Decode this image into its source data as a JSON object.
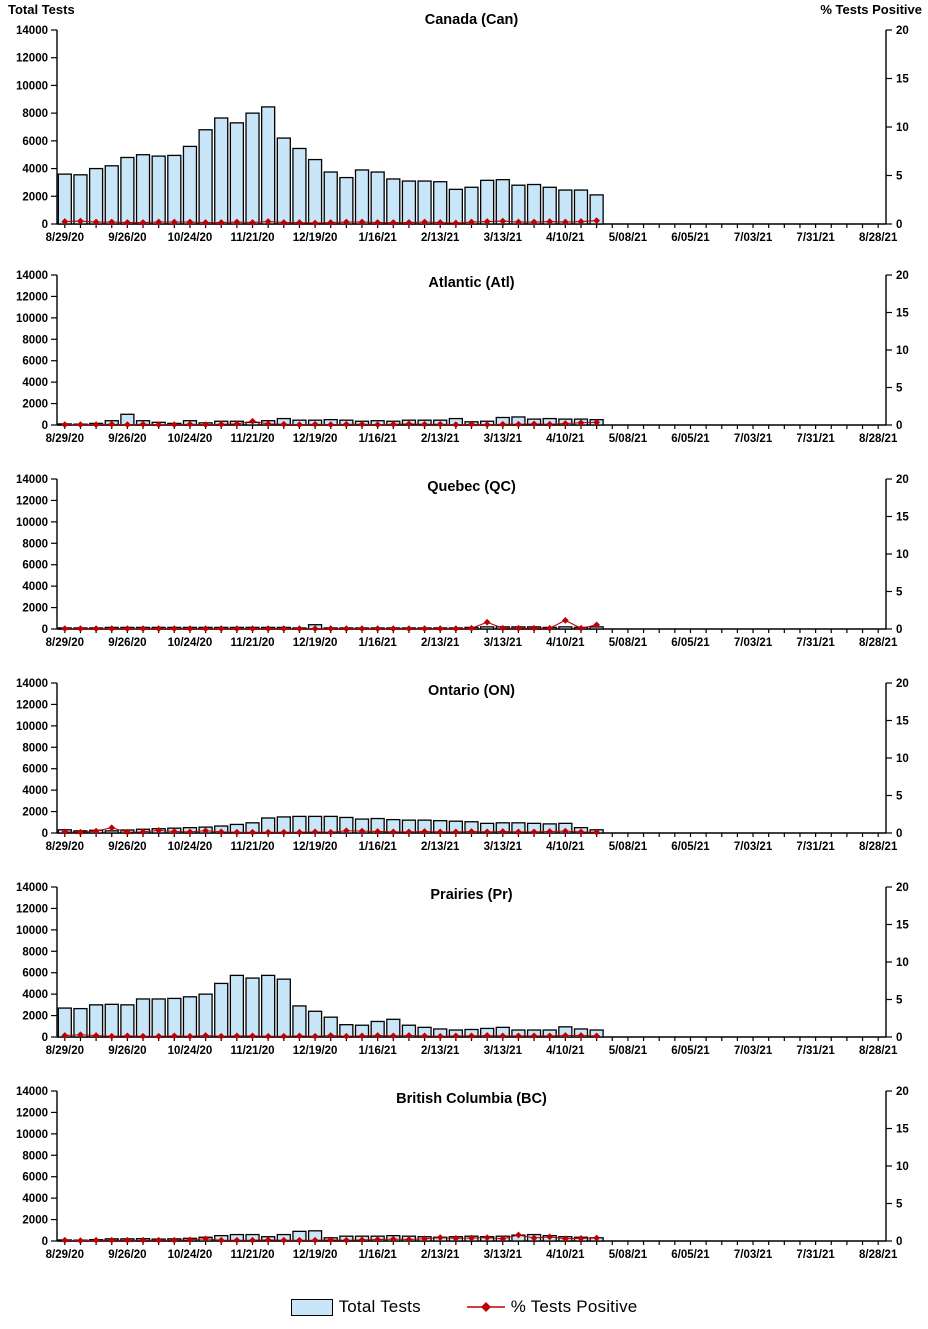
{
  "header": {
    "left_axis_title": "Total Tests",
    "right_axis_title": "% Tests Positive"
  },
  "legend": {
    "total_tests_label": "Total Tests",
    "pct_positive_label": "% Tests Positive"
  },
  "colors": {
    "bar_fill": "#c9e6f8",
    "bar_border": "#000000",
    "line_color": "#c00000",
    "marker_color": "#c00000",
    "axis_color": "#000000",
    "text_color": "#000000"
  },
  "axes": {
    "left_label_ticks": [
      0,
      2000,
      4000,
      6000,
      8000,
      10000,
      12000,
      14000
    ],
    "left_max": 14000,
    "right_label_ticks": [
      0,
      5,
      10,
      15,
      20
    ],
    "right_max": 20,
    "x_tick_labels": [
      "8/29/20",
      "9/26/20",
      "10/24/20",
      "11/21/20",
      "12/19/20",
      "1/16/21",
      "2/13/21",
      "3/13/21",
      "4/10/21",
      "5/08/21",
      "6/05/21",
      "7/03/21",
      "7/31/21",
      "8/28/21"
    ],
    "weeks_total": 53,
    "label_every_n_weeks": 4,
    "grid": "off",
    "legend_position": "bottom-center"
  },
  "chart_data": [
    {
      "type": "bar",
      "title": "Canada (Can)",
      "x": [
        "8/29/20",
        "9/05/20",
        "9/12/20",
        "9/19/20",
        "9/26/20",
        "10/03/20",
        "10/10/20",
        "10/17/20",
        "10/24/20",
        "10/31/20",
        "11/07/20",
        "11/14/20",
        "11/21/20",
        "11/28/20",
        "12/05/20",
        "12/12/20",
        "12/19/20",
        "12/26/20",
        "1/02/21",
        "1/09/21",
        "1/16/21",
        "1/23/21",
        "1/30/21",
        "2/06/21",
        "2/13/21",
        "2/20/21",
        "2/27/21",
        "3/06/21",
        "3/13/21",
        "3/20/21",
        "3/27/21",
        "4/03/21",
        "4/10/21",
        "4/17/21",
        "4/24/21"
      ],
      "series": [
        {
          "name": "Total Tests",
          "axis": "left",
          "values": [
            3600,
            3550,
            4000,
            4200,
            4800,
            5000,
            4900,
            4950,
            5600,
            6800,
            7650,
            7300,
            8000,
            8450,
            6200,
            5450,
            4650,
            3750,
            3350,
            3900,
            3750,
            3250,
            3100,
            3100,
            3050,
            2500,
            2650,
            3150,
            3200,
            2800,
            2850,
            2650,
            2450,
            2450,
            2100
          ]
        },
        {
          "name": "% Tests Positive",
          "axis": "right",
          "values": [
            0.25,
            0.3,
            0.2,
            0.2,
            0.15,
            0.15,
            0.2,
            0.2,
            0.2,
            0.15,
            0.15,
            0.2,
            0.15,
            0.25,
            0.15,
            0.15,
            0.1,
            0.15,
            0.2,
            0.2,
            0.15,
            0.15,
            0.15,
            0.2,
            0.15,
            0.1,
            0.2,
            0.25,
            0.3,
            0.2,
            0.2,
            0.25,
            0.2,
            0.25,
            0.35
          ]
        }
      ]
    },
    {
      "type": "bar",
      "title": "Atlantic (Atl)",
      "x": [
        "8/29/20",
        "9/05/20",
        "9/12/20",
        "9/19/20",
        "9/26/20",
        "10/03/20",
        "10/10/20",
        "10/17/20",
        "10/24/20",
        "10/31/20",
        "11/07/20",
        "11/14/20",
        "11/21/20",
        "11/28/20",
        "12/05/20",
        "12/12/20",
        "12/19/20",
        "12/26/20",
        "1/02/21",
        "1/09/21",
        "1/16/21",
        "1/23/21",
        "1/30/21",
        "2/06/21",
        "2/13/21",
        "2/20/21",
        "2/27/21",
        "3/06/21",
        "3/13/21",
        "3/20/21",
        "3/27/21",
        "4/03/21",
        "4/10/21",
        "4/17/21",
        "4/24/21"
      ],
      "series": [
        {
          "name": "Total Tests",
          "axis": "left",
          "values": [
            100,
            80,
            150,
            400,
            1000,
            400,
            250,
            150,
            400,
            200,
            350,
            350,
            250,
            400,
            600,
            450,
            450,
            500,
            450,
            350,
            400,
            350,
            450,
            450,
            450,
            600,
            300,
            350,
            700,
            750,
            550,
            600,
            550,
            550,
            500
          ]
        },
        {
          "name": "% Tests Positive",
          "axis": "right",
          "values": [
            0.05,
            0.05,
            0.05,
            0.1,
            0.05,
            0.1,
            0.05,
            0.05,
            0.1,
            0.05,
            0.1,
            0.15,
            0.5,
            0.15,
            0.1,
            0.05,
            0.1,
            0.05,
            0.1,
            0.1,
            0.05,
            0.1,
            0.15,
            0.1,
            0.1,
            0.05,
            0.1,
            0.05,
            0.1,
            0.1,
            0.15,
            0.1,
            0.2,
            0.3,
            0.35
          ]
        }
      ]
    },
    {
      "type": "bar",
      "title": "Quebec (QC)",
      "x": [
        "8/29/20",
        "9/05/20",
        "9/12/20",
        "9/19/20",
        "9/26/20",
        "10/03/20",
        "10/10/20",
        "10/17/20",
        "10/24/20",
        "10/31/20",
        "11/07/20",
        "11/14/20",
        "11/21/20",
        "11/28/20",
        "12/05/20",
        "12/12/20",
        "12/19/20",
        "12/26/20",
        "1/02/21",
        "1/09/21",
        "1/16/21",
        "1/23/21",
        "1/30/21",
        "2/06/21",
        "2/13/21",
        "2/20/21",
        "2/27/21",
        "3/06/21",
        "3/13/21",
        "3/20/21",
        "3/27/21",
        "4/03/21",
        "4/10/21",
        "4/17/21",
        "4/24/21"
      ],
      "series": [
        {
          "name": "Total Tests",
          "axis": "left",
          "values": [
            100,
            100,
            100,
            150,
            150,
            150,
            150,
            150,
            150,
            150,
            150,
            150,
            150,
            150,
            150,
            100,
            400,
            100,
            100,
            100,
            100,
            100,
            100,
            100,
            100,
            100,
            150,
            200,
            200,
            200,
            200,
            150,
            200,
            150,
            200
          ]
        },
        {
          "name": "% Tests Positive",
          "axis": "right",
          "values": [
            0.05,
            0.05,
            0.05,
            0.05,
            0.05,
            0.05,
            0.05,
            0.05,
            0.05,
            0.05,
            0.05,
            0.05,
            0.05,
            0.05,
            0.05,
            0.05,
            0.05,
            0.05,
            0.05,
            0.05,
            0.05,
            0.05,
            0.05,
            0.05,
            0.05,
            0.05,
            0.1,
            0.9,
            0.1,
            0.1,
            0.1,
            0.1,
            1.15,
            0.1,
            0.55
          ]
        }
      ]
    },
    {
      "type": "bar",
      "title": "Ontario (ON)",
      "x": [
        "8/29/20",
        "9/05/20",
        "9/12/20",
        "9/19/20",
        "9/26/20",
        "10/03/20",
        "10/10/20",
        "10/17/20",
        "10/24/20",
        "10/31/20",
        "11/07/20",
        "11/14/20",
        "11/21/20",
        "11/28/20",
        "12/05/20",
        "12/12/20",
        "12/19/20",
        "12/26/20",
        "1/02/21",
        "1/09/21",
        "1/16/21",
        "1/23/21",
        "1/30/21",
        "2/06/21",
        "2/13/21",
        "2/20/21",
        "2/27/21",
        "3/06/21",
        "3/13/21",
        "3/20/21",
        "3/27/21",
        "4/03/21",
        "4/10/21",
        "4/17/21",
        "4/24/21"
      ],
      "series": [
        {
          "name": "Total Tests",
          "axis": "left",
          "values": [
            300,
            200,
            250,
            200,
            280,
            350,
            400,
            450,
            500,
            550,
            650,
            800,
            950,
            1400,
            1500,
            1550,
            1550,
            1550,
            1450,
            1300,
            1350,
            1250,
            1200,
            1200,
            1150,
            1100,
            1050,
            900,
            950,
            950,
            900,
            850,
            900,
            500,
            300
          ]
        },
        {
          "name": "% Tests Positive",
          "axis": "right",
          "values": [
            0.15,
            0.1,
            0.25,
            0.7,
            0.1,
            0.15,
            0.35,
            0.2,
            0.15,
            0.3,
            0.15,
            0.1,
            0.1,
            0.1,
            0.1,
            0.1,
            0.15,
            0.1,
            0.3,
            0.25,
            0.2,
            0.15,
            0.15,
            0.2,
            0.15,
            0.15,
            0.2,
            0.15,
            0.2,
            0.15,
            0.15,
            0.2,
            0.25,
            0.15,
            0.1
          ]
        }
      ]
    },
    {
      "type": "bar",
      "title": "Prairies (Pr)",
      "x": [
        "8/29/20",
        "9/05/20",
        "9/12/20",
        "9/19/20",
        "9/26/20",
        "10/03/20",
        "10/10/20",
        "10/17/20",
        "10/24/20",
        "10/31/20",
        "11/07/20",
        "11/14/20",
        "11/21/20",
        "11/28/20",
        "12/05/20",
        "12/12/20",
        "12/19/20",
        "12/26/20",
        "1/02/21",
        "1/09/21",
        "1/16/21",
        "1/23/21",
        "1/30/21",
        "2/06/21",
        "2/13/21",
        "2/20/21",
        "2/27/21",
        "3/06/21",
        "3/13/21",
        "3/20/21",
        "3/27/21",
        "4/03/21",
        "4/10/21",
        "4/17/21",
        "4/24/21"
      ],
      "series": [
        {
          "name": "Total Tests",
          "axis": "left",
          "values": [
            2700,
            2650,
            3000,
            3050,
            3000,
            3550,
            3550,
            3600,
            3750,
            4000,
            5000,
            5750,
            5500,
            5750,
            5400,
            2900,
            2400,
            1850,
            1150,
            1100,
            1450,
            1650,
            1100,
            900,
            750,
            650,
            700,
            800,
            900,
            650,
            650,
            650,
            950,
            750,
            650
          ]
        },
        {
          "name": "% Tests Positive",
          "axis": "right",
          "values": [
            0.2,
            0.3,
            0.2,
            0.1,
            0.15,
            0.1,
            0.1,
            0.15,
            0.1,
            0.2,
            0.1,
            0.15,
            0.15,
            0.1,
            0.1,
            0.15,
            0.1,
            0.2,
            0.1,
            0.15,
            0.2,
            0.15,
            0.2,
            0.15,
            0.1,
            0.15,
            0.15,
            0.2,
            0.15,
            0.15,
            0.15,
            0.15,
            0.2,
            0.2,
            0.15
          ]
        }
      ]
    },
    {
      "type": "bar",
      "title": "British Columbia (BC)",
      "x": [
        "8/29/20",
        "9/05/20",
        "9/12/20",
        "9/19/20",
        "9/26/20",
        "10/03/20",
        "10/10/20",
        "10/17/20",
        "10/24/20",
        "10/31/20",
        "11/07/20",
        "11/14/20",
        "11/21/20",
        "11/28/20",
        "12/05/20",
        "12/12/20",
        "12/19/20",
        "12/26/20",
        "1/02/21",
        "1/09/21",
        "1/16/21",
        "1/23/21",
        "1/30/21",
        "2/06/21",
        "2/13/21",
        "2/20/21",
        "2/27/21",
        "3/06/21",
        "3/13/21",
        "3/20/21",
        "3/27/21",
        "4/03/21",
        "4/10/21",
        "4/17/21",
        "4/24/21"
      ],
      "series": [
        {
          "name": "Total Tests",
          "axis": "left",
          "values": [
            100,
            80,
            130,
            200,
            200,
            220,
            180,
            200,
            250,
            350,
            500,
            600,
            600,
            400,
            600,
            900,
            950,
            300,
            450,
            450,
            450,
            500,
            450,
            400,
            350,
            400,
            450,
            400,
            450,
            550,
            600,
            500,
            400,
            350,
            300
          ]
        },
        {
          "name": "% Tests Positive",
          "axis": "right",
          "values": [
            0.1,
            0.05,
            0.1,
            0.1,
            0.1,
            0.1,
            0.1,
            0.1,
            0.15,
            0.3,
            0.1,
            0.1,
            0.1,
            0.15,
            0.1,
            0.1,
            0.1,
            0.15,
            0.1,
            0.15,
            0.2,
            0.25,
            0.2,
            0.3,
            0.45,
            0.35,
            0.4,
            0.45,
            0.3,
            0.8,
            0.4,
            0.55,
            0.3,
            0.35,
            0.4
          ]
        }
      ]
    }
  ]
}
